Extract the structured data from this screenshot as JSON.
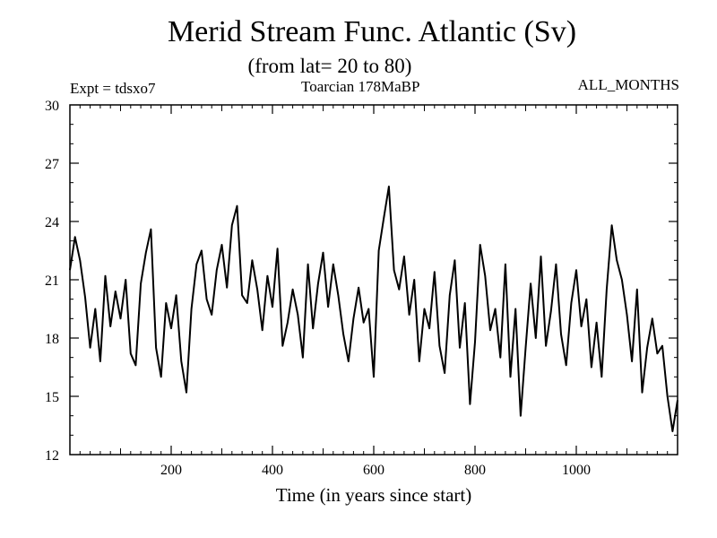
{
  "header": {
    "title": "Merid Stream Func. Atlantic (Sv)",
    "subtitle": "(from lat= 20 to 80)",
    "experiment": "Expt = tdsxo7",
    "period": "Toarcian 178MaBP",
    "months": "ALL_MONTHS"
  },
  "chart_data": {
    "type": "line",
    "title": "Merid Stream Func. Atlantic (Sv)",
    "xlabel": "Time (in years since start)",
    "ylabel": "",
    "xlim": [
      0,
      1200
    ],
    "ylim": [
      12,
      30
    ],
    "xticks": [
      200,
      400,
      600,
      800,
      1000
    ],
    "yticks": [
      12,
      15,
      18,
      21,
      24,
      27,
      30
    ],
    "series": [
      {
        "name": "Merid Stream Func. Atlantic",
        "x": [
          0,
          10,
          20,
          30,
          40,
          50,
          60,
          70,
          80,
          90,
          100,
          110,
          120,
          130,
          140,
          150,
          160,
          170,
          180,
          190,
          200,
          210,
          220,
          230,
          240,
          250,
          260,
          270,
          280,
          290,
          300,
          310,
          320,
          330,
          340,
          350,
          360,
          370,
          380,
          390,
          400,
          410,
          420,
          430,
          440,
          450,
          460,
          470,
          480,
          490,
          500,
          510,
          520,
          530,
          540,
          550,
          560,
          570,
          580,
          590,
          600,
          610,
          620,
          630,
          640,
          650,
          660,
          670,
          680,
          690,
          700,
          710,
          720,
          730,
          740,
          750,
          760,
          770,
          780,
          790,
          800,
          810,
          820,
          830,
          840,
          850,
          860,
          870,
          880,
          890,
          900,
          910,
          920,
          930,
          940,
          950,
          960,
          970,
          980,
          990,
          1000,
          1010,
          1020,
          1030,
          1040,
          1050,
          1060,
          1070,
          1080,
          1090,
          1100,
          1110,
          1120,
          1130,
          1140,
          1150,
          1160,
          1170,
          1180,
          1190,
          1200
        ],
        "values": [
          21.5,
          23.2,
          22.0,
          20.1,
          17.5,
          19.5,
          16.8,
          21.2,
          18.6,
          20.4,
          19.0,
          21.0,
          17.2,
          16.6,
          20.8,
          22.4,
          23.6,
          17.5,
          16.0,
          19.8,
          18.5,
          20.2,
          16.8,
          15.2,
          19.5,
          21.8,
          22.5,
          20.0,
          19.2,
          21.5,
          22.8,
          20.6,
          23.8,
          24.8,
          20.2,
          19.8,
          22.0,
          20.5,
          18.4,
          21.2,
          19.6,
          22.6,
          17.6,
          18.8,
          20.5,
          19.2,
          17.0,
          21.8,
          18.5,
          20.8,
          22.4,
          19.6,
          21.8,
          20.2,
          18.2,
          16.8,
          19.0,
          20.6,
          18.8,
          19.5,
          16.0,
          22.5,
          24.2,
          25.8,
          21.5,
          20.5,
          22.2,
          19.2,
          21.0,
          16.8,
          19.5,
          18.5,
          21.4,
          17.6,
          16.2,
          20.2,
          22.0,
          17.5,
          19.8,
          14.6,
          17.8,
          22.8,
          21.2,
          18.4,
          19.5,
          17.0,
          21.8,
          16.0,
          19.5,
          14.0,
          17.5,
          20.8,
          18.0,
          22.2,
          17.6,
          19.4,
          21.8,
          18.2,
          16.6,
          19.8,
          21.5,
          18.6,
          20.0,
          16.5,
          18.8,
          16.0,
          20.5,
          23.8,
          22.0,
          21.0,
          19.2,
          16.8,
          20.5,
          15.2,
          17.5,
          19.0,
          17.2,
          17.6,
          15.0,
          13.2,
          14.8
        ]
      }
    ]
  }
}
